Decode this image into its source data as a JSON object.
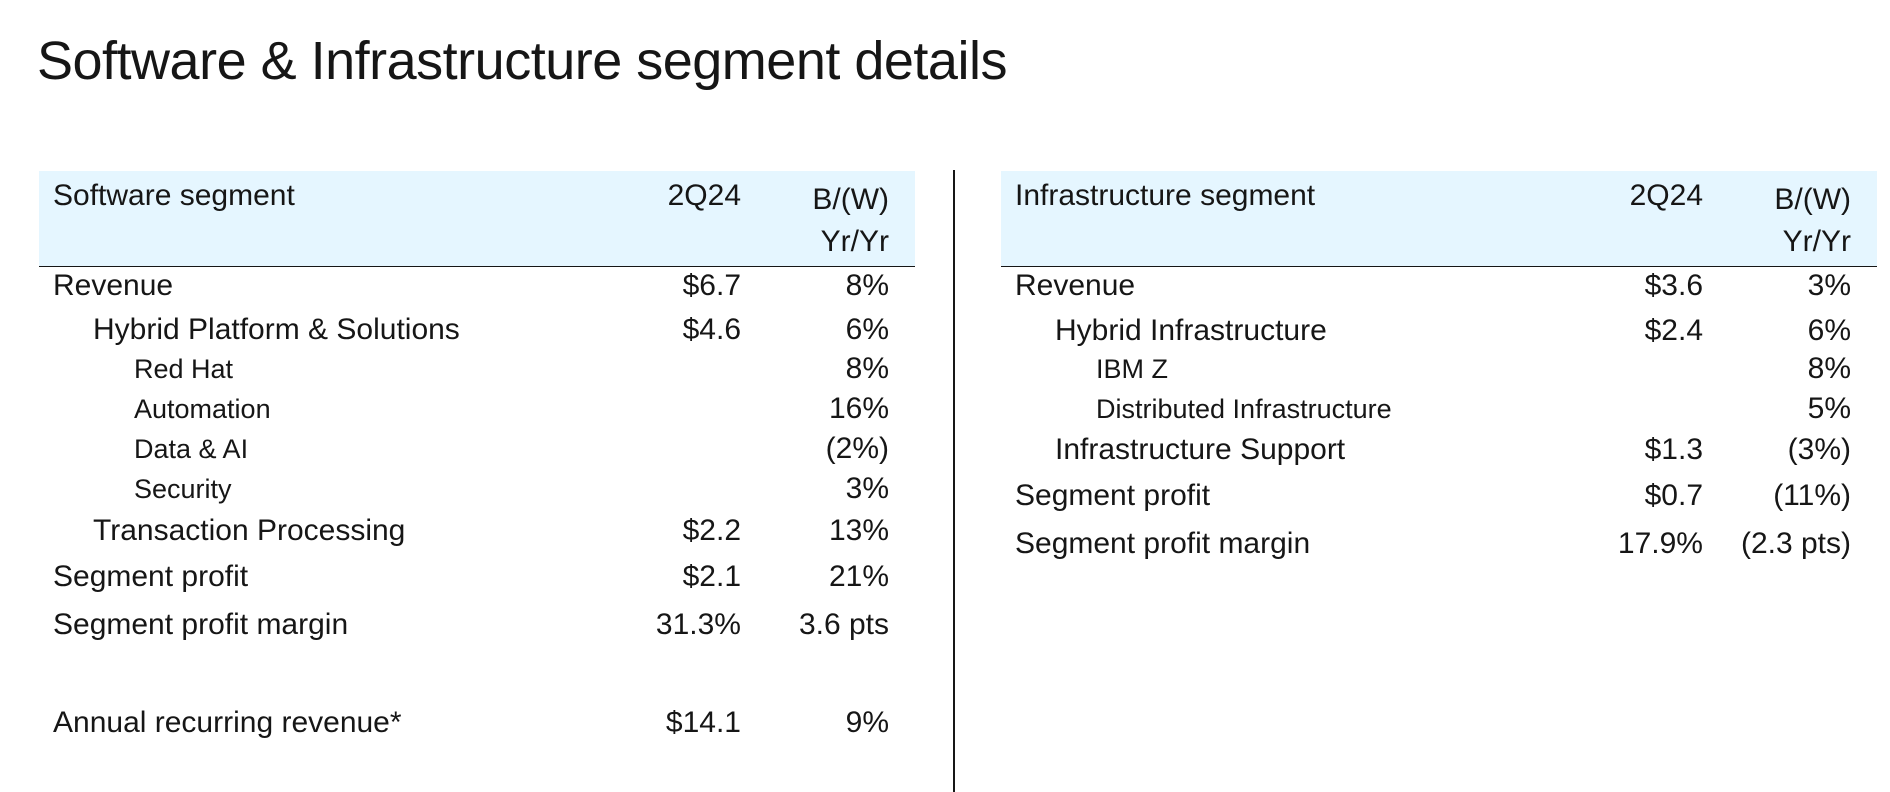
{
  "title": "Software & Infrastructure segment details",
  "software": {
    "header": {
      "name": "Software segment",
      "period": "2Q24",
      "change_line1": "B/(W)",
      "change_line2": "Yr/Yr"
    },
    "rows": [
      {
        "label": "Revenue",
        "value": "$6.7",
        "change": "8%"
      },
      {
        "label": "Hybrid Platform & Solutions",
        "value": "$4.6",
        "change": "6%"
      },
      {
        "label": "Red Hat",
        "value": "",
        "change": "8%"
      },
      {
        "label": "Automation",
        "value": "",
        "change": "16%"
      },
      {
        "label": "Data & AI",
        "value": "",
        "change": "(2%)"
      },
      {
        "label": "Security",
        "value": "",
        "change": "3%"
      },
      {
        "label": "Transaction Processing",
        "value": "$2.2",
        "change": "13%"
      },
      {
        "label": "Segment profit",
        "value": "$2.1",
        "change": "21%"
      },
      {
        "label": "Segment profit margin",
        "value": "31.3%",
        "change": "3.6 pts"
      },
      {
        "label": "Annual recurring revenue*",
        "value": "$14.1",
        "change": "9%"
      }
    ]
  },
  "infrastructure": {
    "header": {
      "name": "Infrastructure segment",
      "period": "2Q24",
      "change_line1": "B/(W)",
      "change_line2": "Yr/Yr"
    },
    "rows": [
      {
        "label": "Revenue",
        "value": "$3.6",
        "change": "3%"
      },
      {
        "label": "Hybrid Infrastructure",
        "value": "$2.4",
        "change": "6%"
      },
      {
        "label": "IBM Z",
        "value": "",
        "change": "8%"
      },
      {
        "label": "Distributed Infrastructure",
        "value": "",
        "change": "5%"
      },
      {
        "label": "Infrastructure Support",
        "value": "$1.3",
        "change": "(3%)"
      },
      {
        "label": "Segment profit",
        "value": "$0.7",
        "change": "(11%)"
      },
      {
        "label": "Segment profit margin",
        "value": "17.9%",
        "change": "(2.3 pts)"
      }
    ]
  }
}
